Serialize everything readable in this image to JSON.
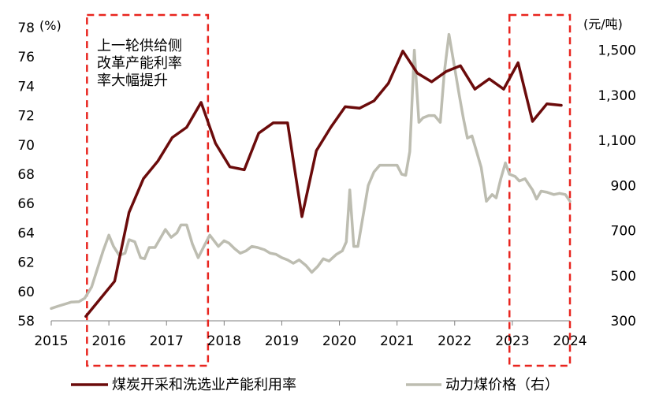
{
  "chart_data": {
    "type": "line",
    "title": "",
    "xlabel": "",
    "left_unit": "(%)",
    "right_unit": "(元/吨)",
    "xlim": [
      2015,
      2024
    ],
    "x_ticks": [
      "2015",
      "2016",
      "2017",
      "2018",
      "2019",
      "2020",
      "2021",
      "2022",
      "2023",
      "2024"
    ],
    "ylim_left": [
      58,
      78
    ],
    "y_left_ticks": [
      "58",
      "60",
      "62",
      "64",
      "66",
      "68",
      "70",
      "72",
      "74",
      "76",
      "78"
    ],
    "ylim_right": [
      300,
      1600
    ],
    "y_right_ticks": [
      "300",
      "500",
      "700",
      "900",
      "1,100",
      "1,300",
      "1,500"
    ],
    "annotation": [
      "上一轮供给侧",
      "改革产能利率",
      "率大幅提升"
    ],
    "highlight_periods": [
      [
        2015.62,
        2017.72
      ],
      [
        2022.95,
        2024.0
      ]
    ],
    "series": [
      {
        "name": "煤炭开采和洗选业产能利用率",
        "axis": "left",
        "color": "#6b0b0b",
        "points": [
          [
            2015.6,
            58.3
          ],
          [
            2016.1,
            60.7
          ],
          [
            2016.35,
            65.4
          ],
          [
            2016.6,
            67.7
          ],
          [
            2016.85,
            68.9
          ],
          [
            2017.1,
            70.5
          ],
          [
            2017.35,
            71.2
          ],
          [
            2017.6,
            72.9
          ],
          [
            2017.85,
            70.1
          ],
          [
            2018.1,
            68.5
          ],
          [
            2018.35,
            68.3
          ],
          [
            2018.6,
            70.8
          ],
          [
            2018.85,
            71.5
          ],
          [
            2019.1,
            71.5
          ],
          [
            2019.35,
            65.1
          ],
          [
            2019.6,
            69.6
          ],
          [
            2019.85,
            71.2
          ],
          [
            2020.1,
            72.6
          ],
          [
            2020.35,
            72.5
          ],
          [
            2020.6,
            73.0
          ],
          [
            2020.85,
            74.2
          ],
          [
            2021.1,
            76.4
          ],
          [
            2021.35,
            74.9
          ],
          [
            2021.6,
            74.3
          ],
          [
            2021.85,
            75.0
          ],
          [
            2022.1,
            75.4
          ],
          [
            2022.35,
            73.8
          ],
          [
            2022.6,
            74.5
          ],
          [
            2022.85,
            73.8
          ],
          [
            2023.1,
            75.6
          ],
          [
            2023.35,
            71.6
          ],
          [
            2023.6,
            72.8
          ],
          [
            2023.85,
            72.7
          ]
        ]
      },
      {
        "name": "动力煤价格（右）",
        "axis": "right",
        "color": "#bdbdb1",
        "points": [
          [
            2015.0,
            355
          ],
          [
            2015.12,
            365
          ],
          [
            2015.25,
            375
          ],
          [
            2015.35,
            383
          ],
          [
            2015.48,
            385
          ],
          [
            2015.58,
            400
          ],
          [
            2015.7,
            450
          ],
          [
            2015.8,
            530
          ],
          [
            2015.9,
            610
          ],
          [
            2016.0,
            680
          ],
          [
            2016.08,
            630
          ],
          [
            2016.18,
            590
          ],
          [
            2016.28,
            600
          ],
          [
            2016.35,
            660
          ],
          [
            2016.45,
            650
          ],
          [
            2016.55,
            580
          ],
          [
            2016.62,
            575
          ],
          [
            2016.7,
            625
          ],
          [
            2016.8,
            625
          ],
          [
            2016.88,
            660
          ],
          [
            2016.98,
            705
          ],
          [
            2017.08,
            670
          ],
          [
            2017.18,
            690
          ],
          [
            2017.25,
            725
          ],
          [
            2017.35,
            725
          ],
          [
            2017.45,
            640
          ],
          [
            2017.55,
            580
          ],
          [
            2017.65,
            630
          ],
          [
            2017.75,
            680
          ],
          [
            2017.9,
            630
          ],
          [
            2018.0,
            655
          ],
          [
            2018.08,
            645
          ],
          [
            2018.18,
            620
          ],
          [
            2018.28,
            600
          ],
          [
            2018.38,
            610
          ],
          [
            2018.48,
            630
          ],
          [
            2018.58,
            625
          ],
          [
            2018.7,
            615
          ],
          [
            2018.8,
            600
          ],
          [
            2018.9,
            595
          ],
          [
            2019.0,
            580
          ],
          [
            2019.1,
            570
          ],
          [
            2019.2,
            555
          ],
          [
            2019.3,
            570
          ],
          [
            2019.42,
            545
          ],
          [
            2019.52,
            515
          ],
          [
            2019.62,
            540
          ],
          [
            2019.72,
            575
          ],
          [
            2019.82,
            565
          ],
          [
            2019.95,
            595
          ],
          [
            2020.05,
            610
          ],
          [
            2020.12,
            650
          ],
          [
            2020.18,
            880
          ],
          [
            2020.25,
            630
          ],
          [
            2020.32,
            630
          ],
          [
            2020.42,
            780
          ],
          [
            2020.5,
            900
          ],
          [
            2020.6,
            960
          ],
          [
            2020.7,
            990
          ],
          [
            2020.85,
            990
          ],
          [
            2021.0,
            990
          ],
          [
            2021.08,
            950
          ],
          [
            2021.15,
            945
          ],
          [
            2021.22,
            1050
          ],
          [
            2021.3,
            1500
          ],
          [
            2021.38,
            1180
          ],
          [
            2021.45,
            1200
          ],
          [
            2021.55,
            1210
          ],
          [
            2021.65,
            1210
          ],
          [
            2021.75,
            1180
          ],
          [
            2021.82,
            1400
          ],
          [
            2021.9,
            1570
          ],
          [
            2022.0,
            1420
          ],
          [
            2022.08,
            1300
          ],
          [
            2022.15,
            1200
          ],
          [
            2022.22,
            1110
          ],
          [
            2022.3,
            1120
          ],
          [
            2022.38,
            1050
          ],
          [
            2022.46,
            980
          ],
          [
            2022.55,
            830
          ],
          [
            2022.65,
            860
          ],
          [
            2022.72,
            845
          ],
          [
            2022.8,
            930
          ],
          [
            2022.88,
            1000
          ],
          [
            2022.95,
            950
          ],
          [
            2023.05,
            940
          ],
          [
            2023.12,
            920
          ],
          [
            2023.22,
            930
          ],
          [
            2023.35,
            880
          ],
          [
            2023.42,
            840
          ],
          [
            2023.5,
            875
          ],
          [
            2023.6,
            870
          ],
          [
            2023.72,
            860
          ],
          [
            2023.82,
            865
          ],
          [
            2023.92,
            860
          ],
          [
            2024.0,
            830
          ]
        ]
      }
    ]
  }
}
